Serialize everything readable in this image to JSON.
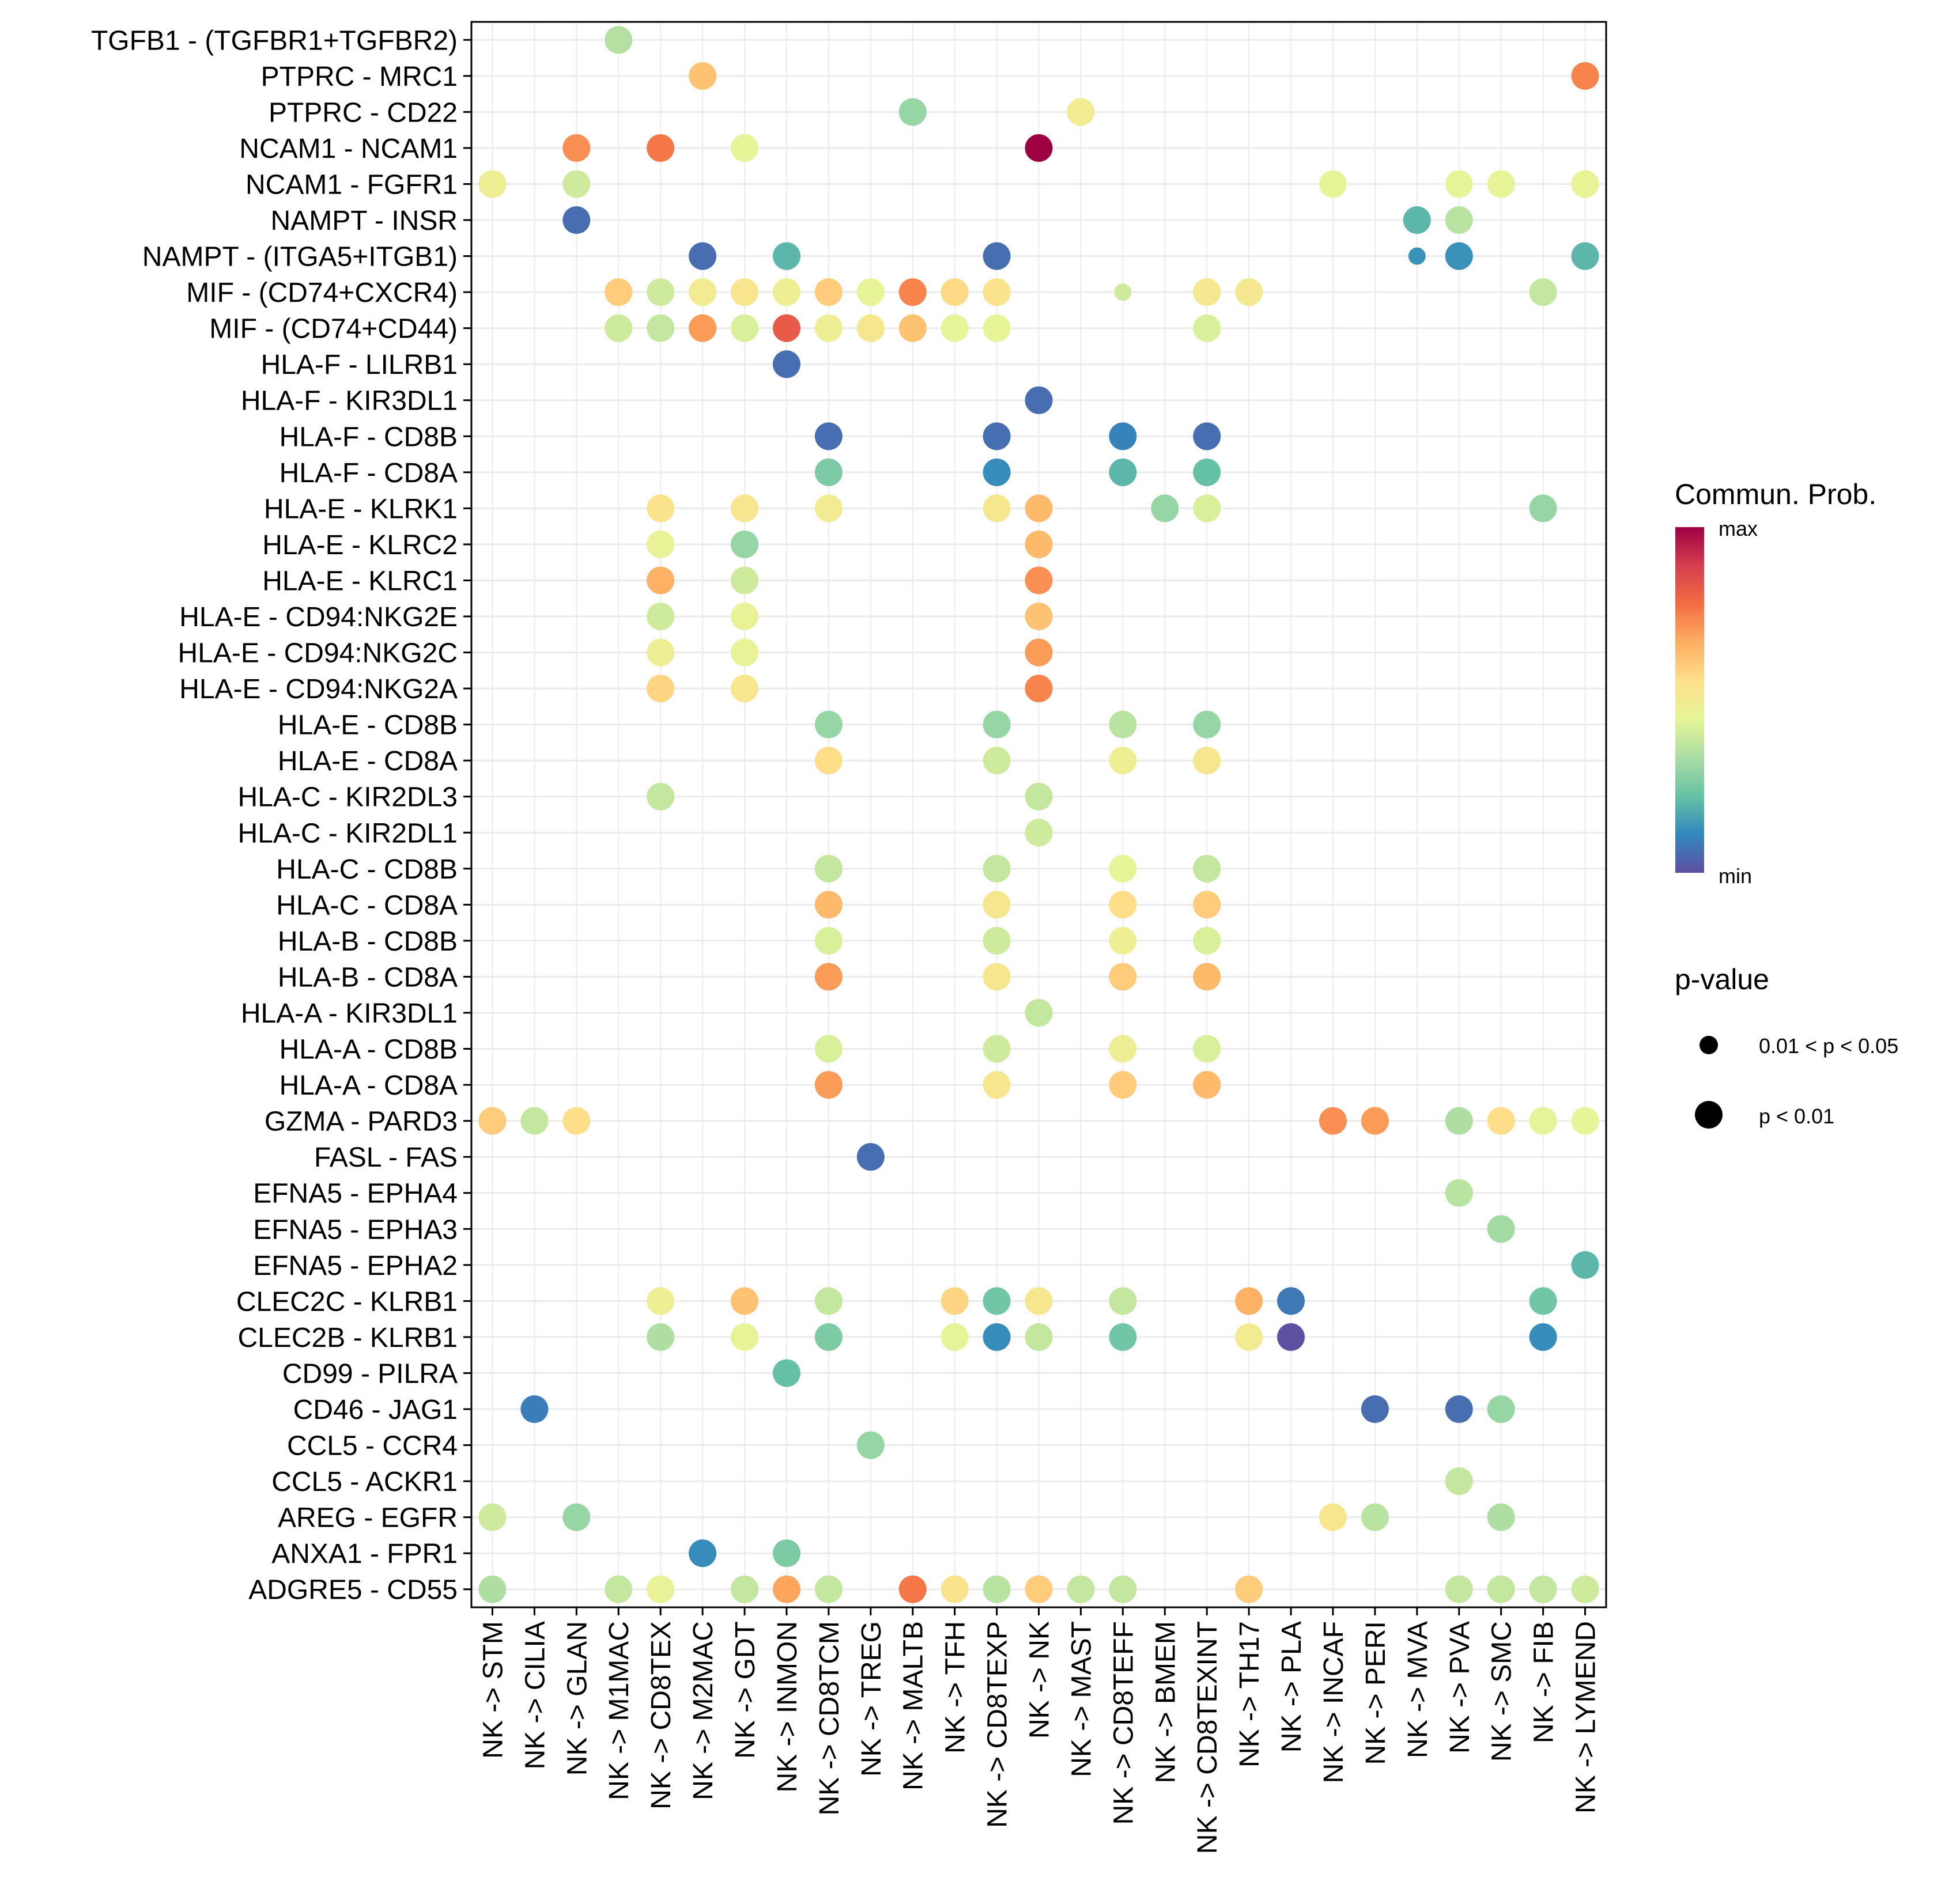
{
  "chart_data": {
    "type": "scatter",
    "subtype": "dot-matrix",
    "title": "",
    "xlabel": "",
    "ylabel": "",
    "grid": true,
    "x_categories": [
      "NK -> STM",
      "NK -> CILIA",
      "NK -> GLAN",
      "NK -> M1MAC",
      "NK -> CD8TEX",
      "NK -> M2MAC",
      "NK -> GDT",
      "NK -> INMON",
      "NK -> CD8TCM",
      "NK -> TREG",
      "NK -> MALTB",
      "NK -> TFH",
      "NK -> CD8TEXP",
      "NK -> NK",
      "NK -> MAST",
      "NK -> CD8TEFF",
      "NK -> BMEM",
      "NK -> CD8TEXINT",
      "NK -> TH17",
      "NK -> PLA",
      "NK -> INCAF",
      "NK -> PERI",
      "NK -> MVA",
      "NK -> PVA",
      "NK -> SMC",
      "NK -> FIB",
      "NK -> LYMEND"
    ],
    "y_categories": [
      "TGFB1 - (TGFBR1+TGFBR2)",
      "PTPRC - MRC1",
      "PTPRC - CD22",
      "NCAM1 - NCAM1",
      "NCAM1 - FGFR1",
      "NAMPT - INSR",
      "NAMPT - (ITGA5+ITGB1)",
      "MIF - (CD74+CXCR4)",
      "MIF - (CD74+CD44)",
      "HLA-F - LILRB1",
      "HLA-F - KIR3DL1",
      "HLA-F - CD8B",
      "HLA-F - CD8A",
      "HLA-E - KLRK1",
      "HLA-E - KLRC2",
      "HLA-E - KLRC1",
      "HLA-E - CD94:NKG2E",
      "HLA-E - CD94:NKG2C",
      "HLA-E - CD94:NKG2A",
      "HLA-E - CD8B",
      "HLA-E - CD8A",
      "HLA-C - KIR2DL3",
      "HLA-C - KIR2DL1",
      "HLA-C - CD8B",
      "HLA-C - CD8A",
      "HLA-B - CD8B",
      "HLA-B - CD8A",
      "HLA-A - KIR3DL1",
      "HLA-A - CD8B",
      "HLA-A - CD8A",
      "GZMA - PARD3",
      "FASL - FAS",
      "EFNA5 - EPHA4",
      "EFNA5 - EPHA3",
      "EFNA5 - EPHA2",
      "CLEC2C - KLRB1",
      "CLEC2B - KLRB1",
      "CD99 - PILRA",
      "CD46 - JAG1",
      "CCL5 - CCR4",
      "CCL5 - ACKR1",
      "AREG - EGFR",
      "ANXA1 - FPR1",
      "ADGRE5 - CD55"
    ],
    "point_fields": [
      "y_index",
      "x_index",
      "commun_prob_scaled",
      "p_lt_0.01"
    ],
    "points": [
      [
        0,
        3,
        0.35,
        1
      ],
      [
        1,
        5,
        0.62,
        1
      ],
      [
        1,
        26,
        0.74,
        1
      ],
      [
        2,
        10,
        0.3,
        1
      ],
      [
        2,
        14,
        0.5,
        1
      ],
      [
        3,
        2,
        0.72,
        1
      ],
      [
        3,
        4,
        0.76,
        1
      ],
      [
        3,
        6,
        0.45,
        1
      ],
      [
        3,
        13,
        1.0,
        1
      ],
      [
        4,
        0,
        0.48,
        1
      ],
      [
        4,
        2,
        0.4,
        1
      ],
      [
        4,
        20,
        0.45,
        1
      ],
      [
        4,
        23,
        0.45,
        1
      ],
      [
        4,
        24,
        0.45,
        1
      ],
      [
        4,
        26,
        0.46,
        1
      ],
      [
        5,
        2,
        0.06,
        1
      ],
      [
        5,
        22,
        0.2,
        1
      ],
      [
        5,
        23,
        0.36,
        1
      ],
      [
        6,
        5,
        0.06,
        1
      ],
      [
        6,
        7,
        0.2,
        1
      ],
      [
        6,
        12,
        0.06,
        1
      ],
      [
        6,
        22,
        0.13,
        0
      ],
      [
        6,
        23,
        0.13,
        1
      ],
      [
        6,
        26,
        0.2,
        1
      ],
      [
        7,
        3,
        0.6,
        1
      ],
      [
        7,
        4,
        0.4,
        1
      ],
      [
        7,
        5,
        0.5,
        1
      ],
      [
        7,
        6,
        0.53,
        1
      ],
      [
        7,
        7,
        0.48,
        1
      ],
      [
        7,
        8,
        0.6,
        1
      ],
      [
        7,
        9,
        0.45,
        1
      ],
      [
        7,
        10,
        0.74,
        1
      ],
      [
        7,
        11,
        0.57,
        1
      ],
      [
        7,
        12,
        0.54,
        1
      ],
      [
        7,
        15,
        0.4,
        0
      ],
      [
        7,
        17,
        0.51,
        1
      ],
      [
        7,
        18,
        0.51,
        1
      ],
      [
        7,
        25,
        0.38,
        1
      ],
      [
        8,
        3,
        0.4,
        1
      ],
      [
        8,
        4,
        0.38,
        1
      ],
      [
        8,
        5,
        0.7,
        1
      ],
      [
        8,
        6,
        0.42,
        1
      ],
      [
        8,
        7,
        0.82,
        1
      ],
      [
        8,
        8,
        0.48,
        1
      ],
      [
        8,
        9,
        0.52,
        1
      ],
      [
        8,
        10,
        0.62,
        1
      ],
      [
        8,
        11,
        0.45,
        1
      ],
      [
        8,
        12,
        0.45,
        1
      ],
      [
        8,
        17,
        0.42,
        1
      ],
      [
        9,
        7,
        0.06,
        1
      ],
      [
        10,
        13,
        0.06,
        1
      ],
      [
        11,
        8,
        0.06,
        1
      ],
      [
        11,
        12,
        0.06,
        1
      ],
      [
        11,
        15,
        0.1,
        1
      ],
      [
        11,
        17,
        0.06,
        1
      ],
      [
        12,
        8,
        0.26,
        1
      ],
      [
        12,
        12,
        0.12,
        1
      ],
      [
        12,
        15,
        0.2,
        1
      ],
      [
        12,
        17,
        0.22,
        1
      ],
      [
        13,
        4,
        0.54,
        1
      ],
      [
        13,
        6,
        0.52,
        1
      ],
      [
        13,
        8,
        0.5,
        1
      ],
      [
        13,
        12,
        0.52,
        1
      ],
      [
        13,
        13,
        0.64,
        1
      ],
      [
        13,
        16,
        0.3,
        1
      ],
      [
        13,
        17,
        0.42,
        1
      ],
      [
        13,
        25,
        0.3,
        1
      ],
      [
        14,
        4,
        0.46,
        1
      ],
      [
        14,
        6,
        0.3,
        1
      ],
      [
        14,
        13,
        0.64,
        1
      ],
      [
        15,
        4,
        0.66,
        1
      ],
      [
        15,
        6,
        0.4,
        1
      ],
      [
        15,
        13,
        0.72,
        1
      ],
      [
        16,
        4,
        0.4,
        1
      ],
      [
        16,
        6,
        0.46,
        1
      ],
      [
        16,
        13,
        0.62,
        1
      ],
      [
        17,
        4,
        0.48,
        1
      ],
      [
        17,
        6,
        0.46,
        1
      ],
      [
        17,
        13,
        0.7,
        1
      ],
      [
        18,
        4,
        0.58,
        1
      ],
      [
        18,
        6,
        0.52,
        1
      ],
      [
        18,
        13,
        0.74,
        1
      ],
      [
        19,
        8,
        0.3,
        1
      ],
      [
        19,
        12,
        0.3,
        1
      ],
      [
        19,
        15,
        0.36,
        1
      ],
      [
        19,
        17,
        0.3,
        1
      ],
      [
        20,
        8,
        0.56,
        1
      ],
      [
        20,
        12,
        0.4,
        1
      ],
      [
        20,
        15,
        0.48,
        1
      ],
      [
        20,
        17,
        0.52,
        1
      ],
      [
        21,
        4,
        0.38,
        1
      ],
      [
        21,
        13,
        0.38,
        1
      ],
      [
        22,
        13,
        0.4,
        1
      ],
      [
        23,
        8,
        0.38,
        1
      ],
      [
        23,
        12,
        0.38,
        1
      ],
      [
        23,
        15,
        0.45,
        1
      ],
      [
        23,
        17,
        0.38,
        1
      ],
      [
        24,
        8,
        0.64,
        1
      ],
      [
        24,
        12,
        0.52,
        1
      ],
      [
        24,
        15,
        0.56,
        1
      ],
      [
        24,
        17,
        0.6,
        1
      ],
      [
        25,
        8,
        0.42,
        1
      ],
      [
        25,
        12,
        0.4,
        1
      ],
      [
        25,
        15,
        0.48,
        1
      ],
      [
        25,
        17,
        0.42,
        1
      ],
      [
        26,
        8,
        0.7,
        1
      ],
      [
        26,
        12,
        0.52,
        1
      ],
      [
        26,
        15,
        0.6,
        1
      ],
      [
        26,
        17,
        0.64,
        1
      ],
      [
        27,
        13,
        0.38,
        1
      ],
      [
        28,
        8,
        0.42,
        1
      ],
      [
        28,
        12,
        0.4,
        1
      ],
      [
        28,
        15,
        0.48,
        1
      ],
      [
        28,
        17,
        0.42,
        1
      ],
      [
        29,
        8,
        0.7,
        1
      ],
      [
        29,
        12,
        0.52,
        1
      ],
      [
        29,
        15,
        0.6,
        1
      ],
      [
        29,
        17,
        0.64,
        1
      ],
      [
        30,
        0,
        0.6,
        1
      ],
      [
        30,
        1,
        0.38,
        1
      ],
      [
        30,
        2,
        0.56,
        1
      ],
      [
        30,
        20,
        0.72,
        1
      ],
      [
        30,
        21,
        0.7,
        1
      ],
      [
        30,
        23,
        0.34,
        1
      ],
      [
        30,
        24,
        0.56,
        1
      ],
      [
        30,
        25,
        0.44,
        1
      ],
      [
        30,
        26,
        0.45,
        1
      ],
      [
        31,
        9,
        0.06,
        1
      ],
      [
        32,
        23,
        0.36,
        1
      ],
      [
        33,
        24,
        0.32,
        1
      ],
      [
        34,
        26,
        0.2,
        1
      ],
      [
        35,
        4,
        0.48,
        1
      ],
      [
        35,
        6,
        0.62,
        1
      ],
      [
        35,
        8,
        0.38,
        1
      ],
      [
        35,
        11,
        0.58,
        1
      ],
      [
        35,
        12,
        0.24,
        1
      ],
      [
        35,
        13,
        0.52,
        1
      ],
      [
        35,
        15,
        0.38,
        1
      ],
      [
        35,
        18,
        0.66,
        1
      ],
      [
        35,
        19,
        0.08,
        1
      ],
      [
        35,
        25,
        0.24,
        1
      ],
      [
        36,
        4,
        0.34,
        1
      ],
      [
        36,
        6,
        0.46,
        1
      ],
      [
        36,
        8,
        0.26,
        1
      ],
      [
        36,
        11,
        0.44,
        1
      ],
      [
        36,
        12,
        0.12,
        1
      ],
      [
        36,
        13,
        0.38,
        1
      ],
      [
        36,
        15,
        0.24,
        1
      ],
      [
        36,
        18,
        0.5,
        1
      ],
      [
        36,
        19,
        0.0,
        1
      ],
      [
        36,
        25,
        0.12,
        1
      ],
      [
        37,
        7,
        0.22,
        1
      ],
      [
        38,
        1,
        0.09,
        1
      ],
      [
        38,
        21,
        0.06,
        1
      ],
      [
        38,
        23,
        0.06,
        1
      ],
      [
        38,
        24,
        0.3,
        1
      ],
      [
        39,
        9,
        0.3,
        1
      ],
      [
        40,
        23,
        0.38,
        1
      ],
      [
        41,
        0,
        0.4,
        1
      ],
      [
        41,
        2,
        0.3,
        1
      ],
      [
        41,
        20,
        0.52,
        1
      ],
      [
        41,
        21,
        0.36,
        1
      ],
      [
        41,
        24,
        0.34,
        1
      ],
      [
        42,
        5,
        0.12,
        1
      ],
      [
        42,
        7,
        0.26,
        1
      ],
      [
        43,
        0,
        0.34,
        1
      ],
      [
        43,
        3,
        0.38,
        1
      ],
      [
        43,
        4,
        0.46,
        1
      ],
      [
        43,
        6,
        0.38,
        1
      ],
      [
        43,
        7,
        0.68,
        1
      ],
      [
        43,
        8,
        0.38,
        1
      ],
      [
        43,
        10,
        0.76,
        1
      ],
      [
        43,
        11,
        0.54,
        1
      ],
      [
        43,
        12,
        0.36,
        1
      ],
      [
        43,
        13,
        0.6,
        1
      ],
      [
        43,
        14,
        0.38,
        1
      ],
      [
        43,
        15,
        0.38,
        1
      ],
      [
        43,
        18,
        0.6,
        1
      ],
      [
        43,
        23,
        0.38,
        1
      ],
      [
        43,
        24,
        0.38,
        1
      ],
      [
        43,
        25,
        0.38,
        1
      ],
      [
        43,
        26,
        0.4,
        1
      ]
    ],
    "colorbar": {
      "title": "Commun. Prob.",
      "max_label": "max",
      "min_label": "min",
      "palette": [
        "#5E4FA2",
        "#3288BD",
        "#66C2A5",
        "#ABDDA4",
        "#E6F598",
        "#FEE08B",
        "#FDAE61",
        "#F46D43",
        "#D53E4F",
        "#9E0142"
      ]
    },
    "size_legend": {
      "title": "p-value",
      "entries": [
        {
          "label": "0.01 < p < 0.05",
          "significance": "weak"
        },
        {
          "label": "p < 0.01",
          "significance": "strong"
        }
      ]
    },
    "legend_placement": "right"
  }
}
